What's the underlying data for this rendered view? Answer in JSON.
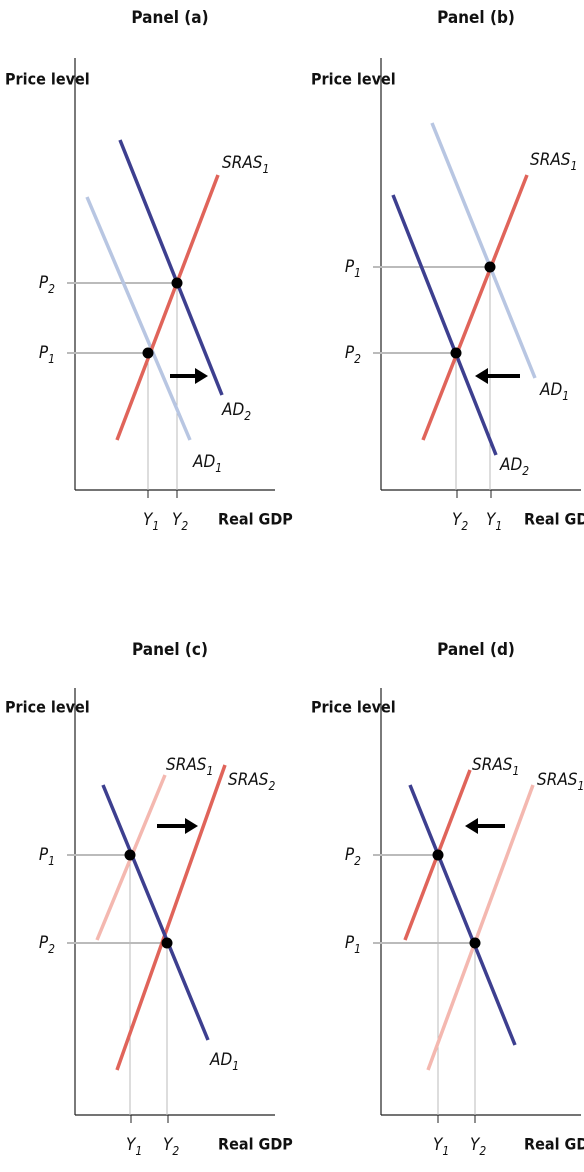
{
  "panels": [
    {
      "title": "Panel (a)",
      "y_axis": "Price level",
      "x_axis": "Real GDP",
      "curves": [
        {
          "name": "SRAS",
          "sub": "1"
        },
        {
          "name": "AD",
          "sub": "2"
        },
        {
          "name": "AD",
          "sub": "1"
        }
      ],
      "prices": [
        {
          "name": "P",
          "sub": "2"
        },
        {
          "name": "P",
          "sub": "1"
        }
      ],
      "outputs": [
        {
          "name": "Y",
          "sub": "1"
        },
        {
          "name": "Y",
          "sub": "2"
        }
      ]
    },
    {
      "title": "Panel (b)",
      "y_axis": "Price level",
      "x_axis": "Real GDP",
      "curves": [
        {
          "name": "SRAS",
          "sub": "1"
        },
        {
          "name": "AD",
          "sub": "1"
        },
        {
          "name": "AD",
          "sub": "2"
        }
      ],
      "prices": [
        {
          "name": "P",
          "sub": "1"
        },
        {
          "name": "P",
          "sub": "2"
        }
      ],
      "outputs": [
        {
          "name": "Y",
          "sub": "2"
        },
        {
          "name": "Y",
          "sub": "1"
        }
      ]
    },
    {
      "title": "Panel (c)",
      "y_axis": "Price level",
      "x_axis": "Real GDP",
      "curves": [
        {
          "name": "SRAS",
          "sub": "1"
        },
        {
          "name": "SRAS",
          "sub": "2"
        },
        {
          "name": "AD",
          "sub": "1"
        }
      ],
      "prices": [
        {
          "name": "P",
          "sub": "1"
        },
        {
          "name": "P",
          "sub": "2"
        }
      ],
      "outputs": [
        {
          "name": "Y",
          "sub": "1"
        },
        {
          "name": "Y",
          "sub": "2"
        }
      ]
    },
    {
      "title": "Panel (d)",
      "y_axis": "Price level",
      "x_axis": "Real GDP",
      "curves": [
        {
          "name": "SRAS",
          "sub": "1"
        },
        {
          "name": "SRAS",
          "sub": "1"
        }
      ],
      "prices": [
        {
          "name": "P",
          "sub": "2"
        },
        {
          "name": "P",
          "sub": "1"
        }
      ],
      "outputs": [
        {
          "name": "Y",
          "sub": "1"
        },
        {
          "name": "Y",
          "sub": "2"
        }
      ]
    }
  ]
}
